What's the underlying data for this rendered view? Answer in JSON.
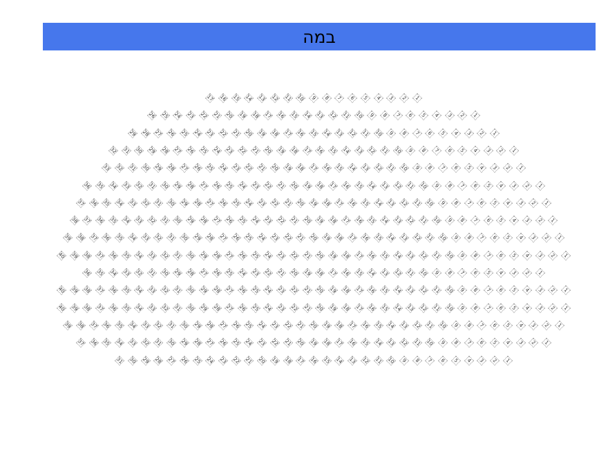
{
  "stage": {
    "label": "במה",
    "color": "#4677ec"
  },
  "seating": {
    "numbering": "right-to-left",
    "rows": [
      {
        "seat_count": 17
      },
      {
        "seat_count": 26
      },
      {
        "seat_count": 29
      },
      {
        "seat_count": 32
      },
      {
        "seat_count": 33
      },
      {
        "seat_count": 36
      },
      {
        "seat_count": 37
      },
      {
        "seat_count": 38
      },
      {
        "seat_count": 39
      },
      {
        "seat_count": 40
      },
      {
        "seat_count": 36
      },
      {
        "seat_count": 40
      },
      {
        "seat_count": 40
      },
      {
        "seat_count": 39
      },
      {
        "seat_count": 37
      },
      {
        "seat_count": 31
      }
    ]
  }
}
